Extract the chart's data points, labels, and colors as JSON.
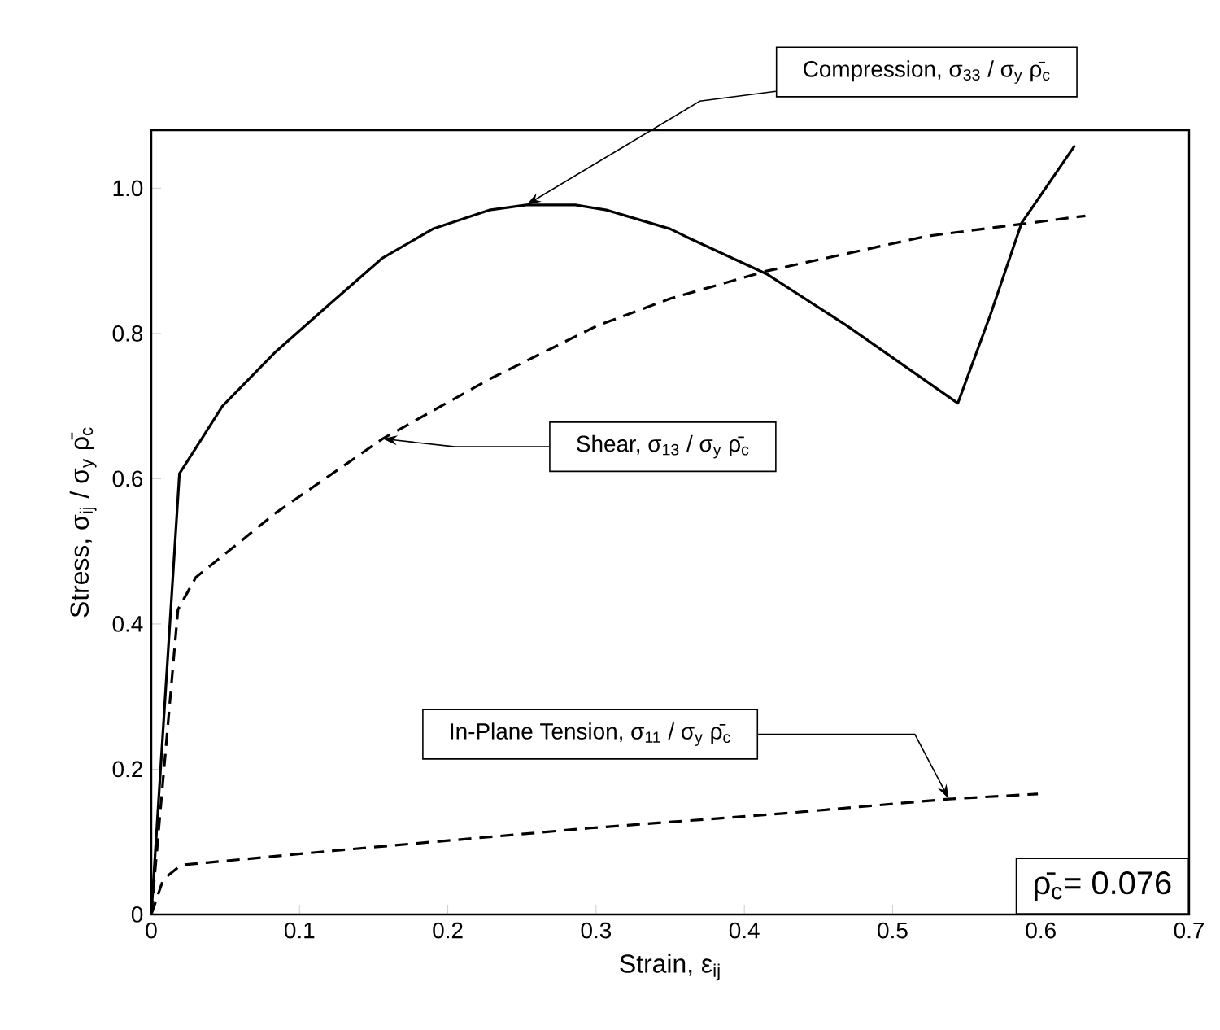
{
  "chart_data": {
    "type": "line",
    "xlabel": "Strain, ε$_{ij}$",
    "ylabel": "Stress, σ$_{ij}$ / σ$_{y}$ ρ̄$_{c}$",
    "xlim": [
      0,
      0.7
    ],
    "ylim": [
      0,
      1.08
    ],
    "xticks": [
      0,
      0.1,
      0.2,
      0.3,
      0.4,
      0.5,
      0.6,
      0.7
    ],
    "yticks": [
      0,
      0.2,
      0.4,
      0.6,
      0.8,
      {
        "value": 1,
        "label": "1.0"
      }
    ],
    "grid": false,
    "legend": false,
    "series": [
      {
        "name": "Compression, σ$_{33}$ / σ$_{y}$ ρ̄$_{c}$",
        "color": "#000000",
        "line_style": "solid",
        "x": [
          0,
          0.019,
          0.048,
          0.084,
          0.12,
          0.156,
          0.19,
          0.228,
          0.253,
          0.286,
          0.307,
          0.35,
          0.361,
          0.415,
          0.469,
          0.544,
          0.566,
          0.587,
          0.623
        ],
        "values": [
          0,
          0.607,
          0.7,
          0.775,
          0.84,
          0.904,
          0.944,
          0.97,
          0.977,
          0.977,
          0.97,
          0.944,
          0.933,
          0.882,
          0.811,
          0.704,
          0.826,
          0.952,
          1.059
        ]
      },
      {
        "name": "Shear, σ$_{13}$ / σ$_{y}$ ρ̄$_{c}$",
        "color": "#000000",
        "line_style": "dashed",
        "x": [
          0,
          0.018,
          0.03,
          0.084,
          0.156,
          0.228,
          0.3,
          0.35,
          0.415,
          0.523,
          0.63
        ],
        "values": [
          0,
          0.42,
          0.464,
          0.553,
          0.655,
          0.737,
          0.81,
          0.848,
          0.886,
          0.934,
          0.962
        ]
      },
      {
        "name": "In-Plane Tension, σ$_{11}$ / σ$_{y}$ ρ̄$_{c}$",
        "color": "#000000",
        "line_style": "dashed",
        "x": [
          0,
          0.008,
          0.02,
          0.124,
          0.296,
          0.426,
          0.538,
          0.598
        ],
        "values": [
          0,
          0.048,
          0.068,
          0.088,
          0.119,
          0.139,
          0.159,
          0.166
        ]
      }
    ],
    "annotations": [
      "ρ̄$_{c}$= 0.076"
    ]
  }
}
